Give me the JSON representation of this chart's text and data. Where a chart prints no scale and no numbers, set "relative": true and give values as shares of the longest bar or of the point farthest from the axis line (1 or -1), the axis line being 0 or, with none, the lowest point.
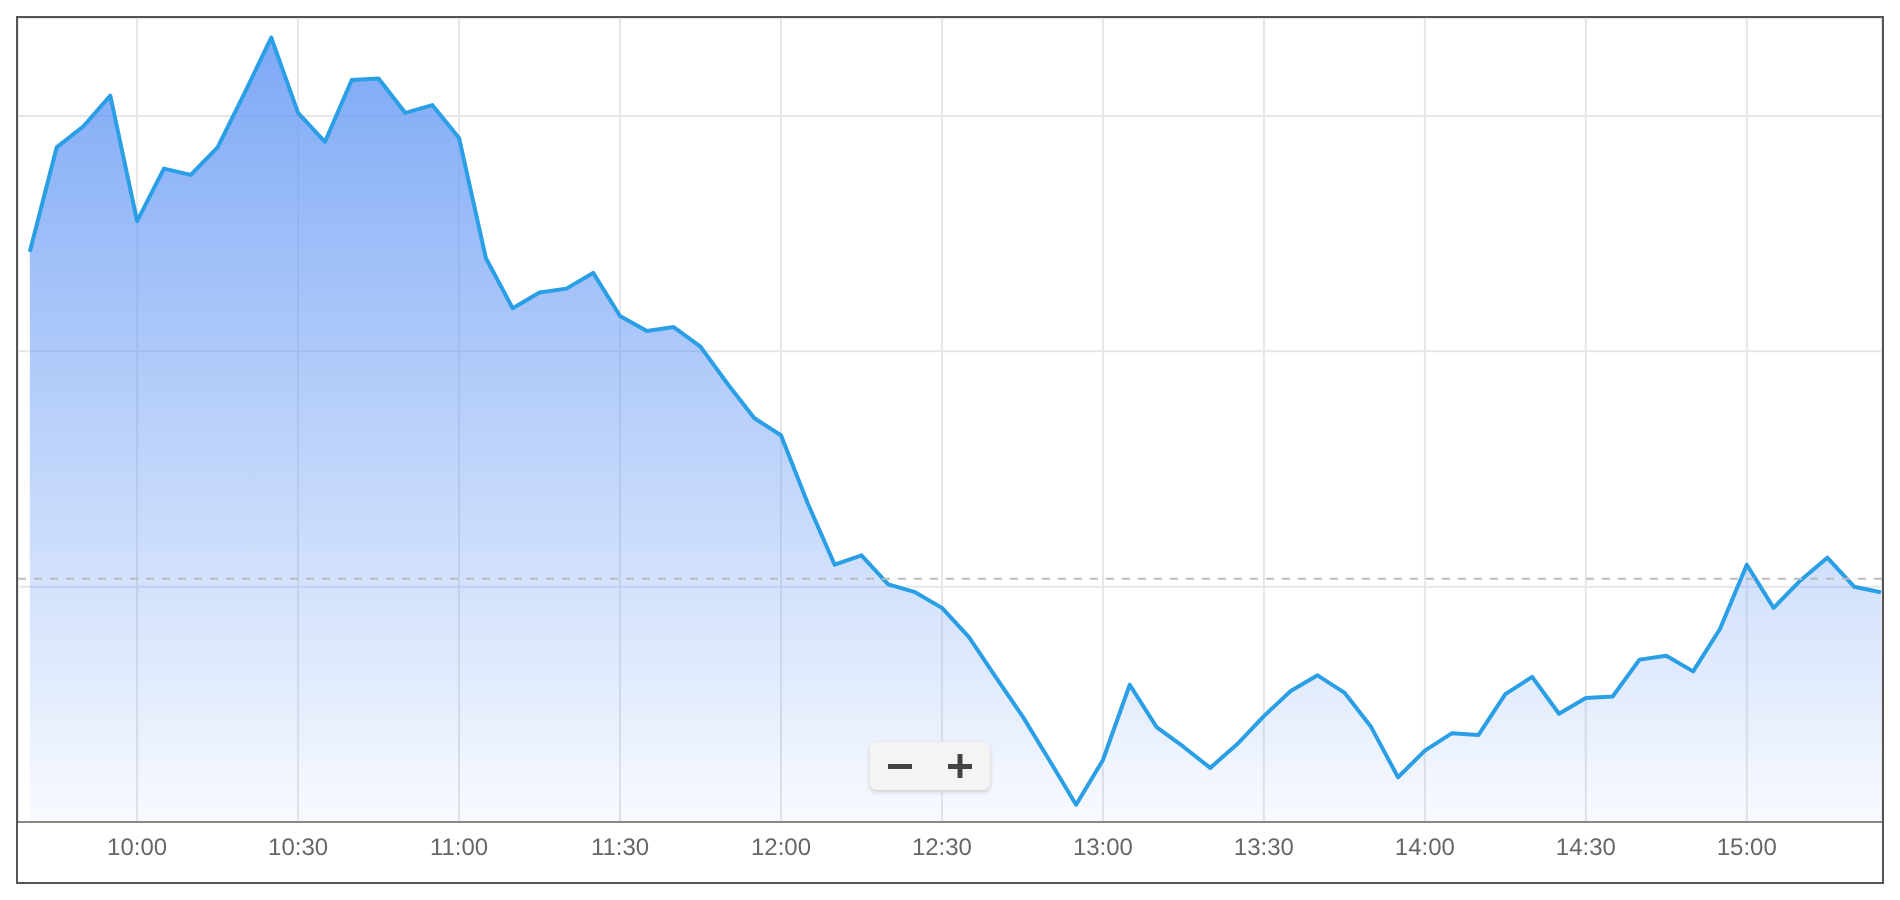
{
  "chart_data": {
    "type": "area",
    "relative": true,
    "x": [
      9.6667,
      9.75,
      9.8333,
      9.9167,
      10,
      10.0833,
      10.1667,
      10.25,
      10.3333,
      10.4167,
      10.5,
      10.5833,
      10.6667,
      10.75,
      10.8333,
      10.9167,
      11,
      11.0833,
      11.1667,
      11.25,
      11.3333,
      11.4167,
      11.5,
      11.5833,
      11.6667,
      11.75,
      11.8333,
      11.9167,
      12,
      12.0833,
      12.1667,
      12.25,
      12.3333,
      12.4167,
      12.5,
      12.5833,
      12.6667,
      12.75,
      12.8333,
      12.9167,
      13,
      13.0833,
      13.1667,
      13.25,
      13.3333,
      13.4167,
      13.5,
      13.5833,
      13.6667,
      13.75,
      13.8333,
      13.9167,
      14,
      14.0833,
      14.1667,
      14.25,
      14.3333,
      14.4167,
      14.5,
      14.5833,
      14.6667,
      14.75,
      14.8333,
      14.9167,
      15,
      15.0833,
      15.1667,
      15.25,
      15.3333,
      15.4167
    ],
    "series": [
      {
        "color": "#2a9fe6",
        "values": [
          0.727,
          0.86,
          0.887,
          0.926,
          0.766,
          0.833,
          0.825,
          0.86,
          0.929,
          1,
          0.904,
          0.867,
          0.946,
          0.948,
          0.904,
          0.914,
          0.872,
          0.719,
          0.655,
          0.675,
          0.68,
          0.7,
          0.645,
          0.626,
          0.631,
          0.606,
          0.559,
          0.515,
          0.493,
          0.406,
          0.328,
          0.34,
          0.303,
          0.293,
          0.273,
          0.236,
          0.185,
          0.135,
          0.079,
          0.022,
          0.079,
          0.175,
          0.121,
          0.096,
          0.069,
          0.099,
          0.135,
          0.167,
          0.187,
          0.165,
          0.121,
          0.057,
          0.091,
          0.113,
          0.111,
          0.163,
          0.185,
          0.138,
          0.158,
          0.16,
          0.207,
          0.212,
          0.192,
          0.246,
          0.328,
          0.273,
          0.308,
          0.337,
          0.3,
          0.293
        ]
      }
    ],
    "xlim": [
      9.63,
      15.42
    ],
    "xticks": [
      {
        "value": 10,
        "label": "10:00"
      },
      {
        "value": 10.5,
        "label": "10:30"
      },
      {
        "value": 11,
        "label": "11:00"
      },
      {
        "value": 11.5,
        "label": "11:30"
      },
      {
        "value": 12,
        "label": "12:00"
      },
      {
        "value": 12.5,
        "label": "12:30"
      },
      {
        "value": 13,
        "label": "13:00"
      },
      {
        "value": 13.5,
        "label": "13:30"
      },
      {
        "value": 14,
        "label": "14:00"
      },
      {
        "value": 14.5,
        "label": "14:30"
      },
      {
        "value": 15,
        "label": "15:00"
      }
    ],
    "ref_lines": [
      {
        "axis": "y",
        "value": 0.31,
        "color": "#bbbbbb",
        "line_style": "dashed"
      }
    ],
    "grid": true,
    "marker": "none",
    "line_style": "solid"
  }
}
